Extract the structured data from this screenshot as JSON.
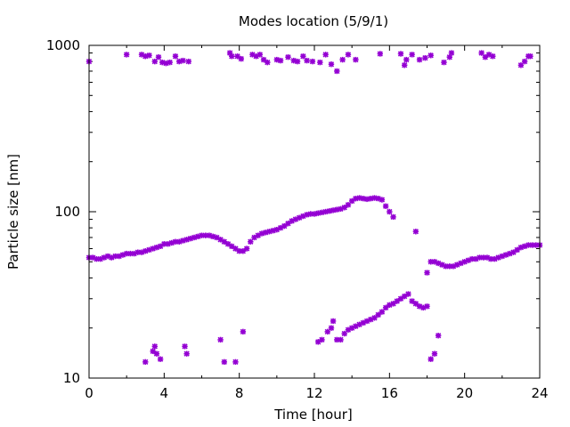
{
  "chart_data": {
    "type": "scatter",
    "title": "Modes location (5/9/1)",
    "xlabel": "Time [hour]",
    "ylabel": "Particle size [nm]",
    "xlim": [
      0,
      24
    ],
    "ylim": [
      10,
      1000
    ],
    "yscale": "log",
    "grid": false,
    "legend": "none",
    "marker": "asterisk",
    "marker_color": "#9400D3",
    "x_ticks": [
      "0",
      "4",
      "8",
      "12",
      "16",
      "20",
      "24"
    ],
    "y_ticks": [
      "10",
      "100",
      "1000"
    ],
    "series": [
      {
        "points": [
          [
            0.0,
            800
          ],
          [
            2.0,
            880
          ],
          [
            2.8,
            880
          ],
          [
            3.0,
            860
          ],
          [
            3.2,
            870
          ],
          [
            3.5,
            800
          ],
          [
            3.7,
            850
          ],
          [
            3.9,
            790
          ],
          [
            4.1,
            780
          ],
          [
            4.3,
            790
          ],
          [
            4.6,
            860
          ],
          [
            4.8,
            800
          ],
          [
            5.0,
            810
          ],
          [
            5.3,
            800
          ],
          [
            7.5,
            900
          ],
          [
            7.6,
            860
          ],
          [
            7.9,
            860
          ],
          [
            8.1,
            830
          ],
          [
            8.7,
            880
          ],
          [
            8.9,
            860
          ],
          [
            9.1,
            880
          ],
          [
            9.3,
            820
          ],
          [
            9.5,
            790
          ],
          [
            10.0,
            820
          ],
          [
            10.2,
            810
          ],
          [
            10.6,
            850
          ],
          [
            10.9,
            810
          ],
          [
            11.1,
            800
          ],
          [
            11.4,
            860
          ],
          [
            11.6,
            810
          ],
          [
            11.9,
            800
          ],
          [
            12.3,
            790
          ],
          [
            12.6,
            880
          ],
          [
            12.9,
            770
          ],
          [
            13.2,
            700
          ],
          [
            13.5,
            820
          ],
          [
            13.8,
            880
          ],
          [
            14.2,
            820
          ],
          [
            15.5,
            890
          ],
          [
            16.6,
            890
          ],
          [
            16.8,
            760
          ],
          [
            16.9,
            820
          ],
          [
            17.2,
            880
          ],
          [
            17.6,
            820
          ],
          [
            17.9,
            840
          ],
          [
            18.2,
            870
          ],
          [
            18.9,
            790
          ],
          [
            19.2,
            850
          ],
          [
            19.3,
            900
          ],
          [
            20.9,
            900
          ],
          [
            21.1,
            850
          ],
          [
            21.3,
            880
          ],
          [
            21.5,
            860
          ],
          [
            23.0,
            760
          ],
          [
            23.2,
            800
          ],
          [
            23.4,
            860
          ],
          [
            23.5,
            860
          ]
        ]
      },
      {
        "points": [
          [
            0.0,
            53
          ],
          [
            0.2,
            53
          ],
          [
            0.4,
            52
          ],
          [
            0.6,
            52
          ],
          [
            0.8,
            53
          ],
          [
            1.0,
            54
          ],
          [
            1.2,
            53
          ],
          [
            1.4,
            54
          ],
          [
            1.6,
            54
          ],
          [
            1.8,
            55
          ],
          [
            2.0,
            56
          ],
          [
            2.2,
            56
          ],
          [
            2.4,
            56
          ],
          [
            2.6,
            57
          ],
          [
            2.8,
            57
          ],
          [
            3.0,
            58
          ],
          [
            3.2,
            59
          ],
          [
            3.4,
            60
          ],
          [
            3.6,
            61
          ],
          [
            3.8,
            62
          ],
          [
            4.0,
            64
          ],
          [
            4.2,
            64
          ],
          [
            4.4,
            65
          ],
          [
            4.6,
            66
          ],
          [
            4.8,
            66
          ],
          [
            5.0,
            67
          ],
          [
            5.2,
            68
          ],
          [
            5.4,
            69
          ],
          [
            5.6,
            70
          ],
          [
            5.8,
            71
          ],
          [
            6.0,
            72
          ],
          [
            6.2,
            72
          ],
          [
            6.4,
            72
          ],
          [
            6.6,
            71
          ],
          [
            6.8,
            70
          ],
          [
            7.0,
            68
          ],
          [
            7.2,
            66
          ],
          [
            7.4,
            64
          ],
          [
            7.6,
            62
          ],
          [
            7.8,
            60
          ],
          [
            8.0,
            58
          ],
          [
            8.2,
            58
          ],
          [
            8.4,
            60
          ],
          [
            8.6,
            66
          ],
          [
            8.8,
            70
          ],
          [
            9.0,
            72
          ],
          [
            9.2,
            74
          ],
          [
            9.4,
            75
          ],
          [
            9.6,
            76
          ],
          [
            9.8,
            77
          ],
          [
            10.0,
            78
          ],
          [
            10.2,
            80
          ],
          [
            10.4,
            82
          ],
          [
            10.6,
            85
          ],
          [
            10.8,
            88
          ],
          [
            11.0,
            90
          ],
          [
            11.2,
            92
          ],
          [
            11.4,
            94
          ],
          [
            11.6,
            96
          ],
          [
            11.8,
            97
          ],
          [
            12.0,
            97
          ],
          [
            12.2,
            98
          ],
          [
            12.4,
            99
          ],
          [
            12.6,
            100
          ],
          [
            12.8,
            101
          ],
          [
            13.0,
            102
          ],
          [
            13.2,
            103
          ],
          [
            13.4,
            104
          ],
          [
            13.6,
            106
          ],
          [
            13.8,
            110
          ],
          [
            14.0,
            116
          ],
          [
            14.2,
            120
          ],
          [
            14.4,
            121
          ],
          [
            14.6,
            120
          ],
          [
            14.8,
            119
          ],
          [
            15.0,
            120
          ],
          [
            15.2,
            121
          ],
          [
            15.4,
            120
          ],
          [
            15.6,
            118
          ],
          [
            15.8,
            108
          ],
          [
            16.0,
            100
          ],
          [
            16.2,
            93
          ],
          [
            17.4,
            76
          ],
          [
            18.0,
            43
          ],
          [
            18.2,
            50
          ],
          [
            18.4,
            50
          ],
          [
            18.6,
            49
          ],
          [
            18.8,
            48
          ],
          [
            19.0,
            47
          ],
          [
            19.2,
            47
          ],
          [
            19.4,
            47
          ],
          [
            19.6,
            48
          ],
          [
            19.8,
            49
          ],
          [
            20.0,
            50
          ],
          [
            20.2,
            51
          ],
          [
            20.4,
            52
          ],
          [
            20.6,
            52
          ],
          [
            20.8,
            53
          ],
          [
            21.0,
            53
          ],
          [
            21.2,
            53
          ],
          [
            21.4,
            52
          ],
          [
            21.6,
            52
          ],
          [
            21.8,
            53
          ],
          [
            22.0,
            54
          ],
          [
            22.2,
            55
          ],
          [
            22.4,
            56
          ],
          [
            22.6,
            57
          ],
          [
            22.8,
            59
          ],
          [
            23.0,
            61
          ],
          [
            23.2,
            62
          ],
          [
            23.4,
            63
          ],
          [
            23.6,
            63
          ],
          [
            23.8,
            63
          ],
          [
            24.0,
            63
          ]
        ]
      },
      {
        "points": [
          [
            3.0,
            12.5
          ],
          [
            3.4,
            14.5
          ],
          [
            3.6,
            14.0
          ],
          [
            3.5,
            15.5
          ],
          [
            3.8,
            13.0
          ],
          [
            5.1,
            15.5
          ],
          [
            5.2,
            14.0
          ],
          [
            7.0,
            17
          ],
          [
            7.2,
            12.5
          ],
          [
            7.8,
            12.5
          ],
          [
            8.2,
            19
          ],
          [
            12.2,
            16.5
          ],
          [
            12.4,
            17
          ],
          [
            12.7,
            19
          ],
          [
            12.9,
            20
          ],
          [
            13.0,
            22
          ],
          [
            13.2,
            17
          ],
          [
            13.4,
            17
          ],
          [
            13.6,
            18.5
          ],
          [
            13.8,
            19.5
          ],
          [
            14.0,
            20
          ],
          [
            14.2,
            20.5
          ],
          [
            14.4,
            21
          ],
          [
            14.6,
            21.5
          ],
          [
            14.8,
            22
          ],
          [
            15.0,
            22.5
          ],
          [
            15.2,
            23
          ],
          [
            15.4,
            24
          ],
          [
            15.6,
            25
          ],
          [
            15.8,
            26.5
          ],
          [
            16.0,
            27.5
          ],
          [
            16.2,
            28
          ],
          [
            16.4,
            29
          ],
          [
            16.6,
            30
          ],
          [
            16.8,
            31
          ],
          [
            17.0,
            32
          ],
          [
            17.2,
            29
          ],
          [
            17.4,
            28
          ],
          [
            17.6,
            27
          ],
          [
            17.8,
            26.5
          ],
          [
            18.0,
            27
          ],
          [
            18.2,
            13
          ],
          [
            18.4,
            14
          ],
          [
            18.6,
            18
          ]
        ]
      }
    ]
  }
}
